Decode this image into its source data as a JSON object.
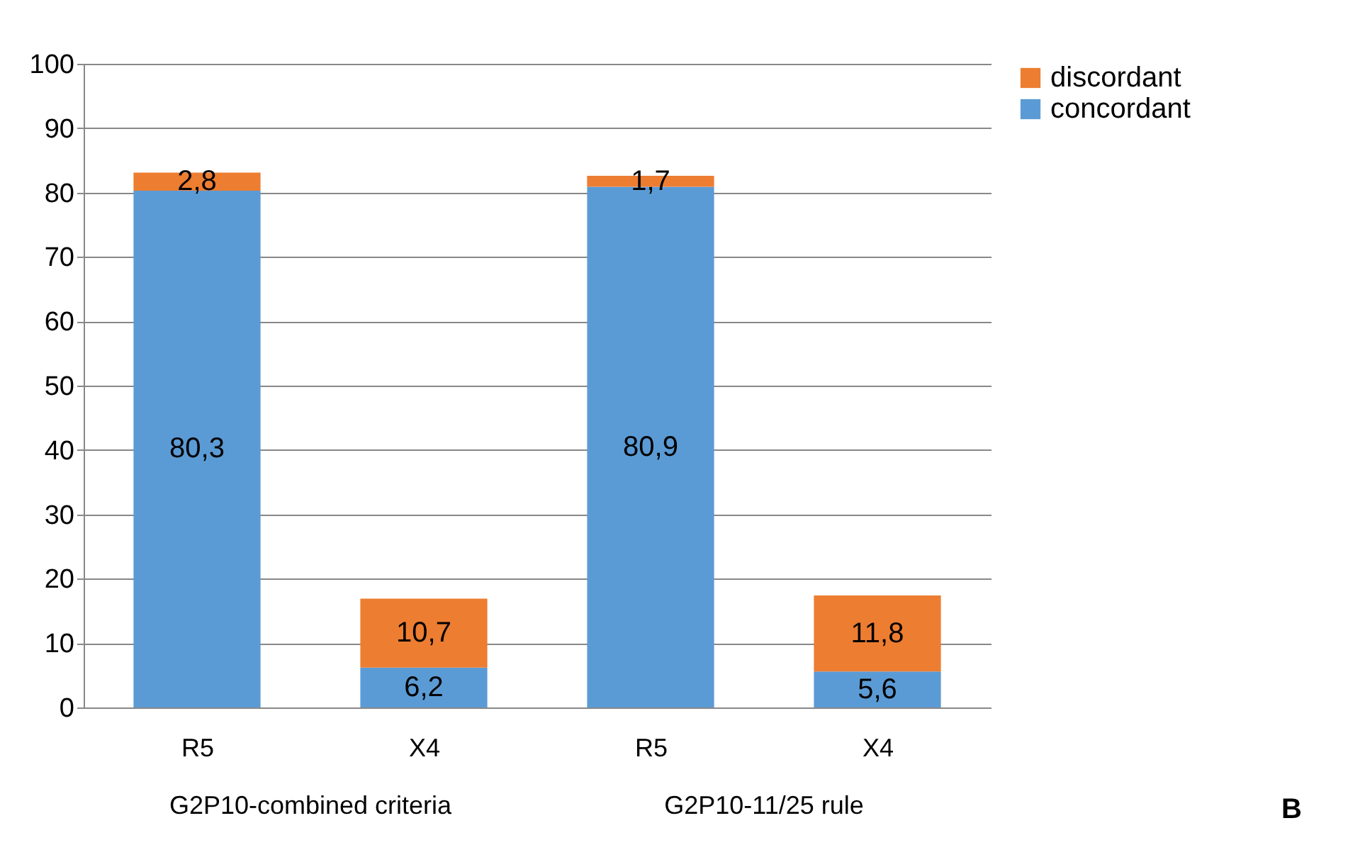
{
  "chart_data": {
    "type": "bar",
    "stacked": true,
    "categories": [
      "R5",
      "X4",
      "R5",
      "X4"
    ],
    "series": [
      {
        "name": "concordant",
        "color": "#5b9bd5",
        "values": [
          80.3,
          6.2,
          80.9,
          5.6
        ],
        "value_labels": [
          "80,3",
          "6,2",
          "80,9",
          "5,6"
        ]
      },
      {
        "name": "discordant",
        "color": "#ed7d31",
        "values": [
          2.8,
          10.7,
          1.7,
          11.8
        ],
        "value_labels": [
          "2,8",
          "10,7",
          "1,7",
          "11,8"
        ]
      }
    ],
    "ylim": [
      0,
      100
    ],
    "yticks": [
      0,
      10,
      20,
      30,
      40,
      50,
      60,
      70,
      80,
      90,
      100
    ],
    "grid": "y",
    "legend": "right",
    "annotations": [
      "G2P10-combined criteria",
      "G2P10-11/25 rule",
      "B"
    ]
  }
}
